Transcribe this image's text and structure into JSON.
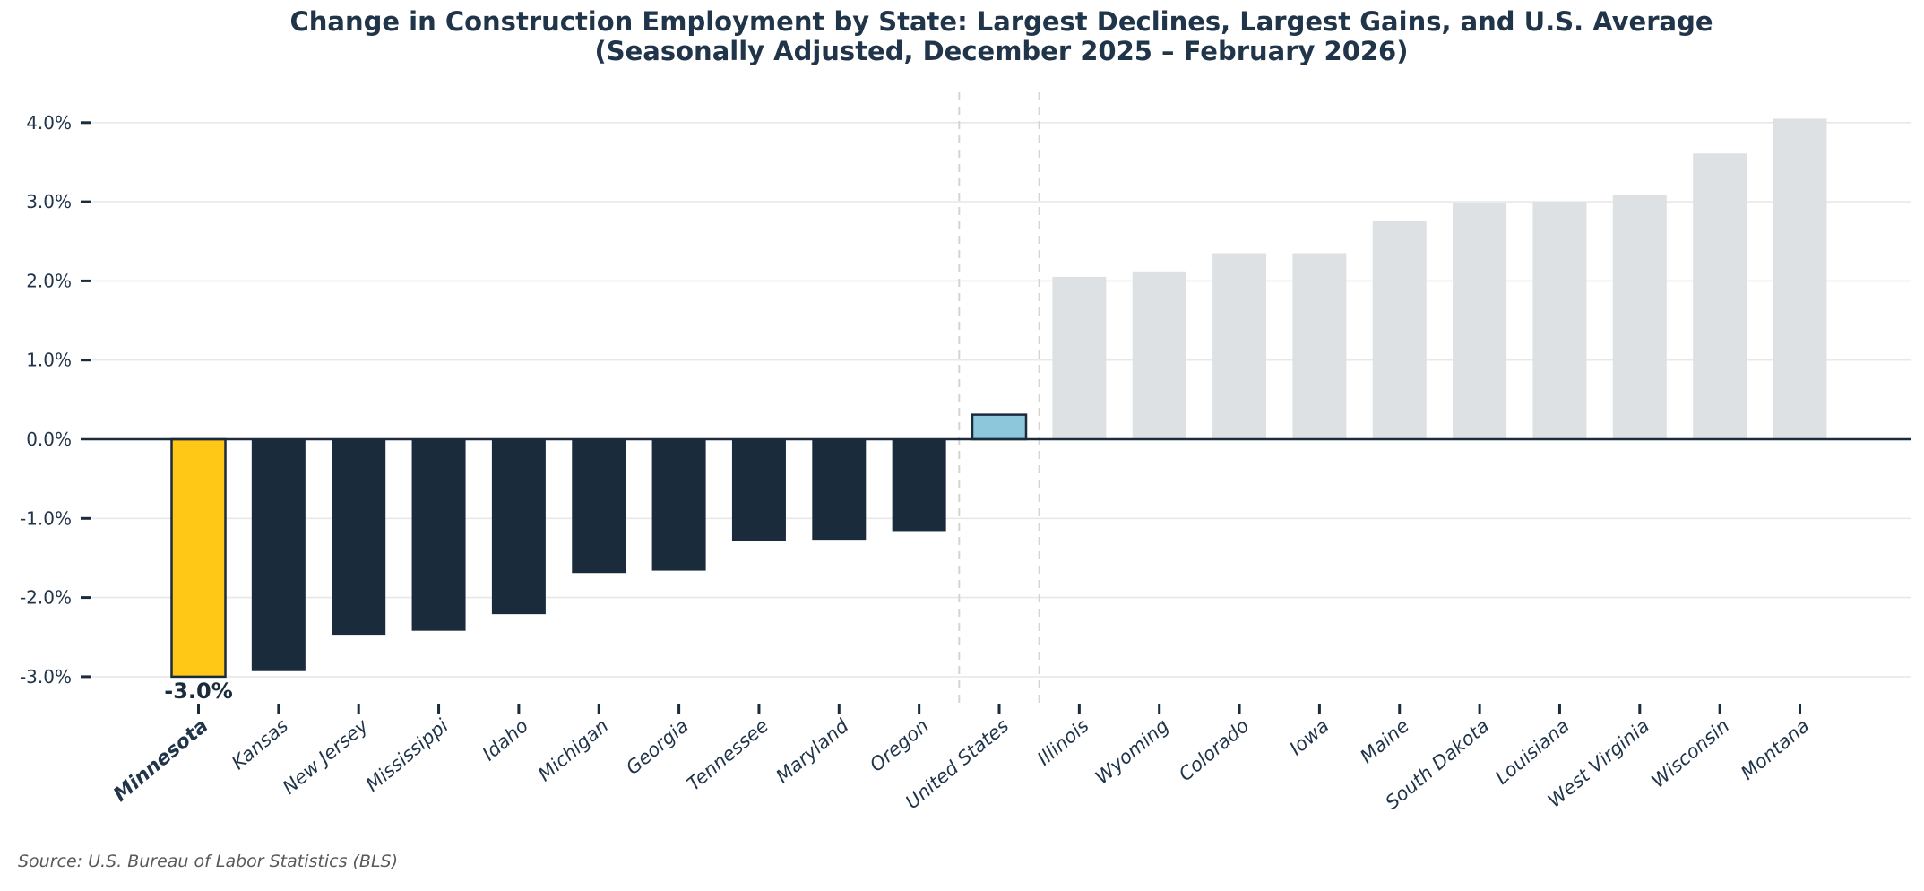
{
  "title": {
    "line1": "Change in Construction Employment by State: Largest Declines, Largest Gains, and U.S. Average",
    "line2": "(Seasonally Adjusted, December 2025 – February 2026)"
  },
  "source_note": "Source: U.S. Bureau of Labor Statistics (BLS)",
  "chart_data": {
    "type": "bar",
    "title": "Change in Construction Employment by State: Largest Declines, Largest Gains, and U.S. Average",
    "subtitle": "(Seasonally Adjusted, December 2025 – February 2026)",
    "xlabel": "",
    "ylabel": "",
    "ylim": [
      -3.35,
      4.38
    ],
    "grid": "horizontal",
    "legend": "none",
    "zero_line": true,
    "yticks": [
      {
        "value": 4.0,
        "label": "4.0%"
      },
      {
        "value": 3.0,
        "label": "3.0%"
      },
      {
        "value": 2.0,
        "label": "2.0%"
      },
      {
        "value": 1.0,
        "label": "1.0%"
      },
      {
        "value": 0.0,
        "label": "0.0%"
      },
      {
        "value": -1.0,
        "label": "-1.0%"
      },
      {
        "value": -2.0,
        "label": "-2.0%"
      },
      {
        "value": -3.0,
        "label": "-3.0%"
      }
    ],
    "categories": [
      "Minnesota",
      "Kansas",
      "New Jersey",
      "Mississippi",
      "Idaho",
      "Michigan",
      "Georgia",
      "Tennessee",
      "Maryland",
      "Oregon",
      "United States",
      "Illinois",
      "Wyoming",
      "Colorado",
      "Iowa",
      "Maine",
      "South Dakota",
      "Louisiana",
      "West Virginia",
      "Wisconsin",
      "Montana"
    ],
    "values": [
      -3.0,
      -2.93,
      -2.47,
      -2.42,
      -2.21,
      -1.69,
      -1.66,
      -1.29,
      -1.27,
      -1.16,
      0.31,
      2.05,
      2.12,
      2.35,
      2.35,
      2.76,
      2.98,
      3.0,
      3.08,
      3.61,
      4.05
    ],
    "bar_kinds": [
      "highlight_decline",
      "decline",
      "decline",
      "decline",
      "decline",
      "decline",
      "decline",
      "decline",
      "decline",
      "decline",
      "us_average",
      "gain",
      "gain",
      "gain",
      "gain",
      "gain",
      "gain",
      "gain",
      "gain",
      "gain",
      "gain"
    ],
    "annotation": {
      "text": "-3.0%",
      "category_index": 0
    },
    "separators": {
      "around_category": "United States",
      "style": "dashed"
    },
    "emphasized_tick_labels": [
      "Minnesota"
    ]
  },
  "colors": {
    "decline_bar": "#1A2B3C",
    "highlight_bar": "#FFC817",
    "us_average_bar": "#8CC7DC",
    "gain_bar": "#DEE1E4",
    "bar_outline": "#1A2B3C",
    "grid_line": "#E8E8E8",
    "zero_line": "#1A2B3C",
    "separator_line": "#D4D4D4",
    "tick_mark": "#1A2B3C",
    "text_dark": "#21354A",
    "annotation_text": "#1A2B3C",
    "source_text": "#595959",
    "background": "#FFFFFF"
  }
}
